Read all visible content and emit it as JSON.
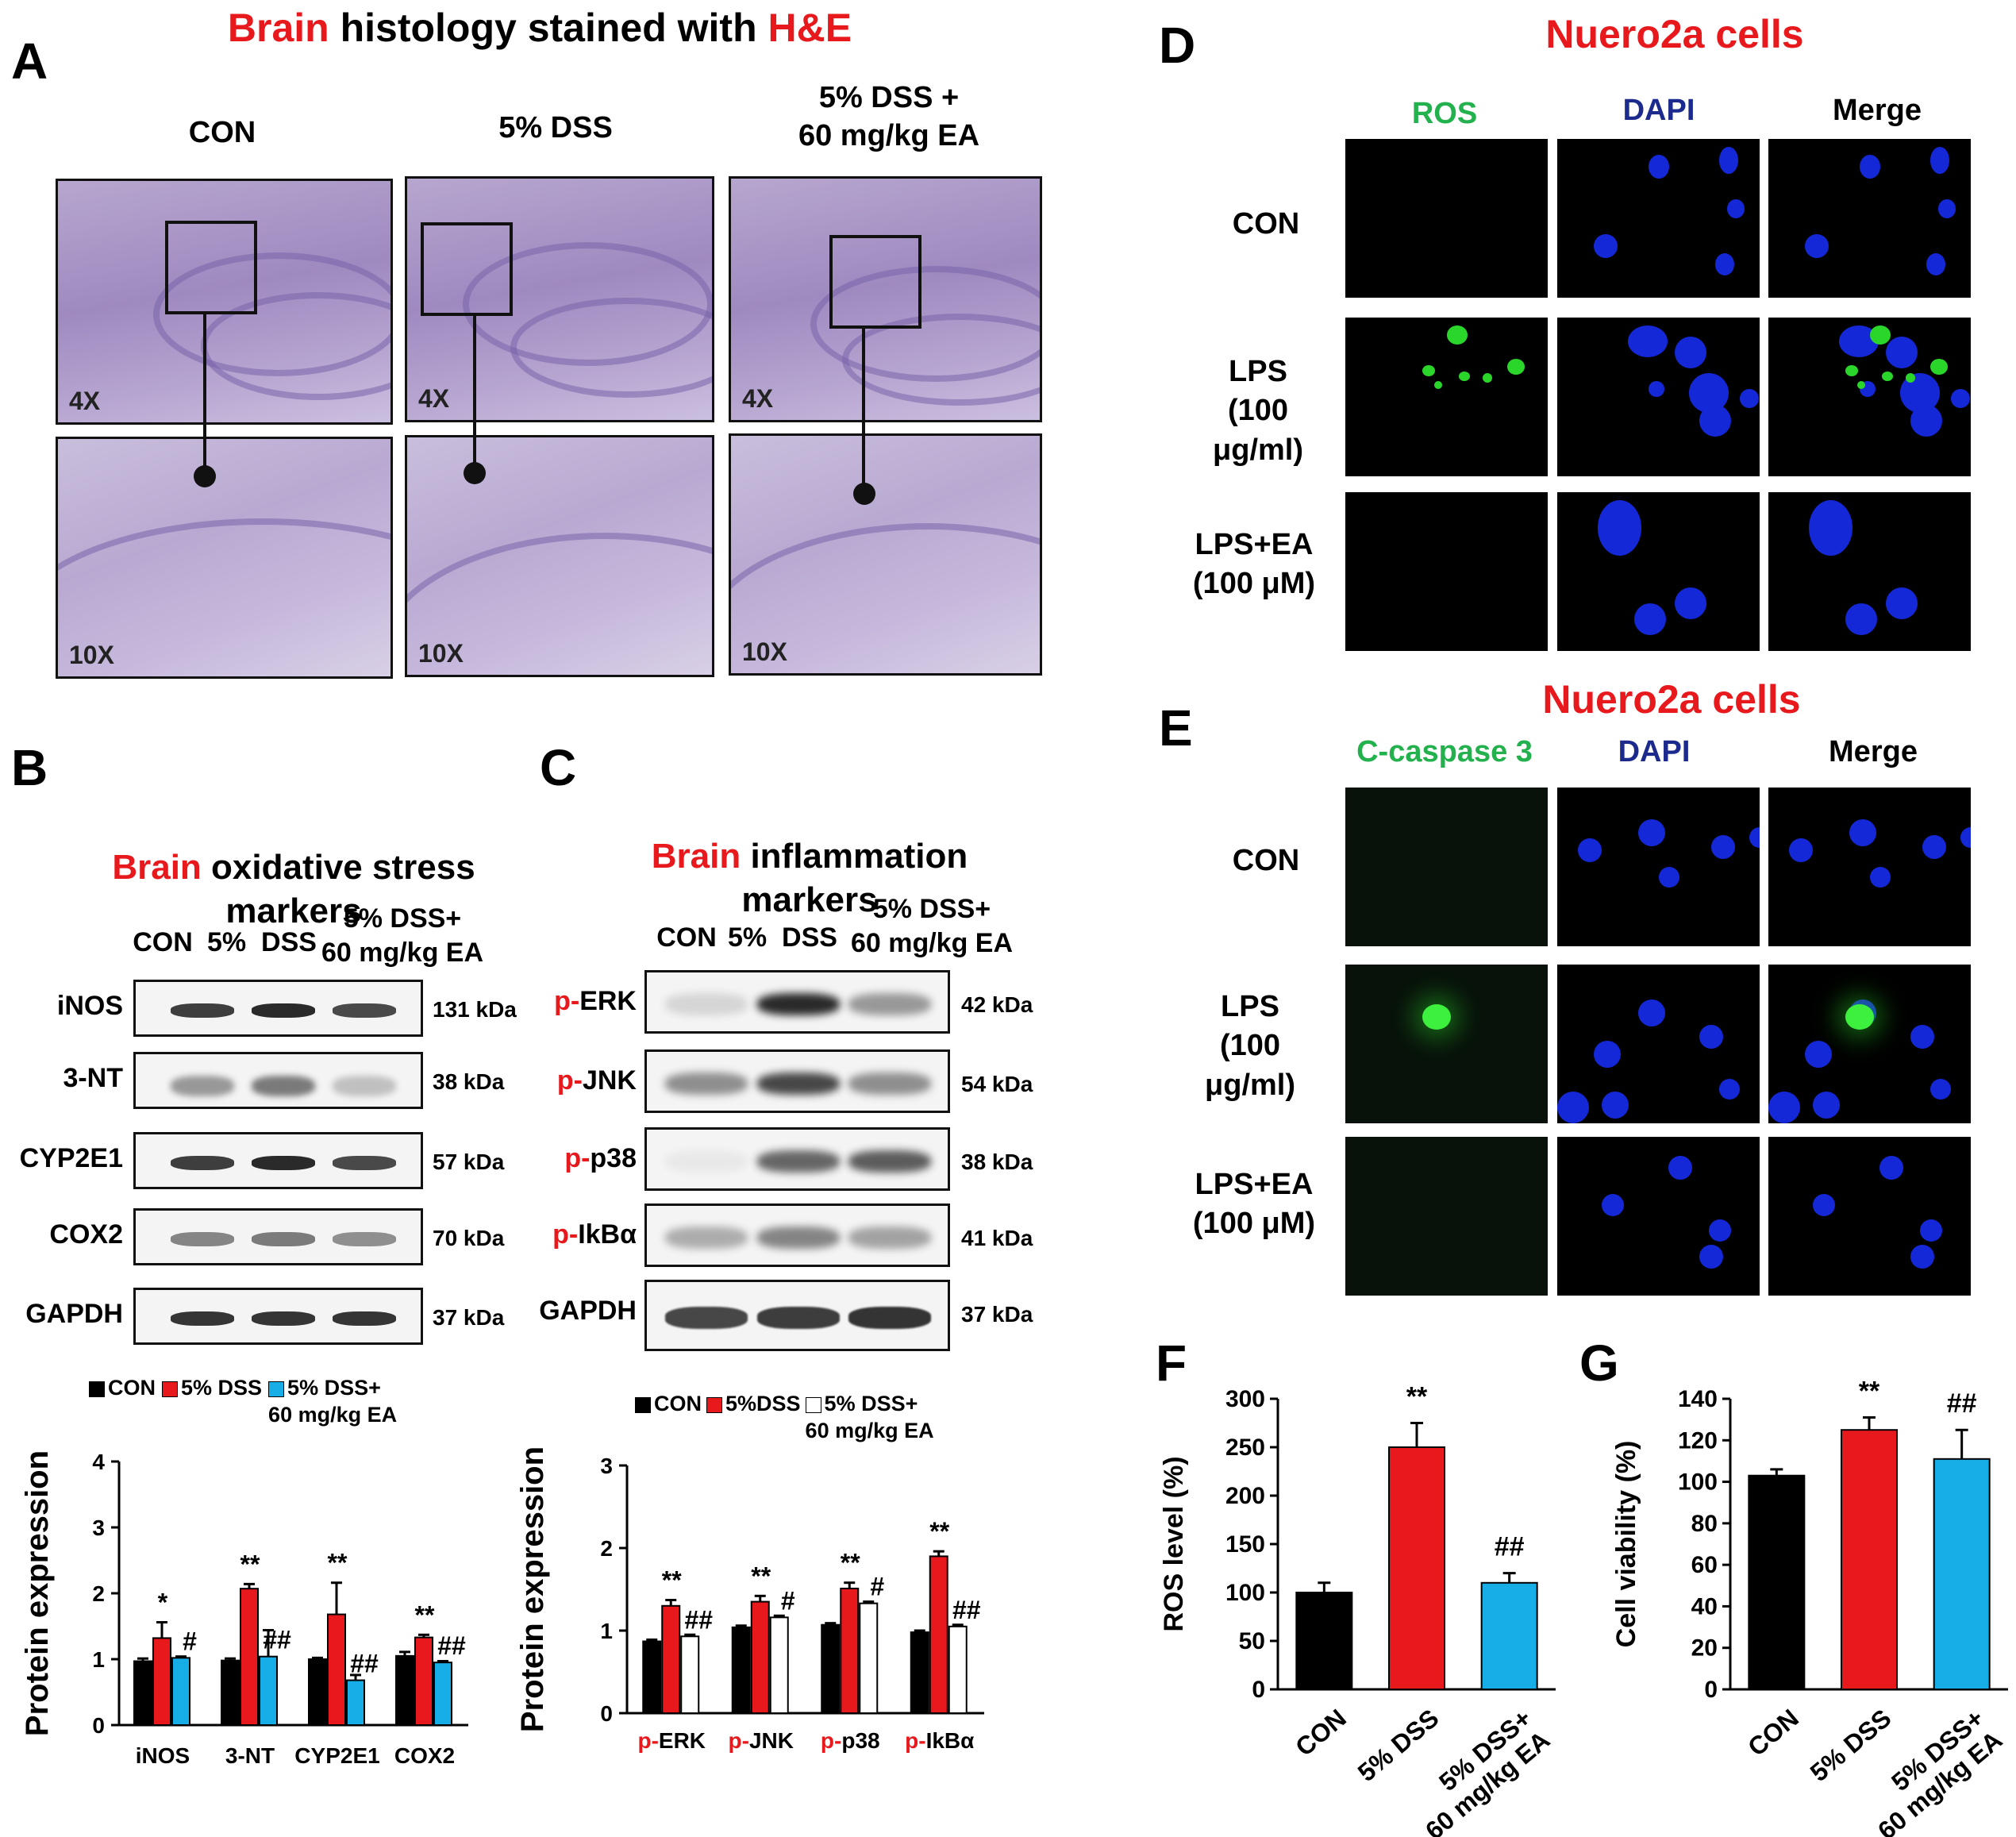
{
  "panelA": {
    "letter": "A",
    "title_part1": "Brain",
    "title_part2": " histology stained with ",
    "title_part3": "H&E",
    "groups": [
      "CON",
      "5% DSS",
      "5% DSS +\n60 mg/kg EA"
    ],
    "mag_top": "4X",
    "mag_bottom": "10X"
  },
  "panelB": {
    "letter": "B",
    "title_red": "Brain",
    "title_rest": " oxidative stress\nmarkers",
    "col_con": "CON",
    "col_dss": "5%  DSS",
    "col_ea": "5%  DSS+\n60 mg/kg EA",
    "rows": [
      {
        "label": "iNOS",
        "kda": "131 kDa"
      },
      {
        "label": "3-NT",
        "kda": "38 kDa"
      },
      {
        "label": "CYP2E1",
        "kda": "57 kDa"
      },
      {
        "label": "COX2",
        "kda": "70 kDa"
      },
      {
        "label": "GAPDH",
        "kda": "37 kDa"
      }
    ],
    "legend": [
      "CON",
      "5% DSS",
      "5% DSS+\n60 mg/kg EA"
    ]
  },
  "panelC": {
    "letter": "C",
    "title_red": "Brain",
    "title_rest": "  inflammation\nmarkers",
    "col_con": "CON",
    "col_dss": "5%  DSS",
    "col_ea": "5%  DSS+\n60 mg/kg EA",
    "rows": [
      {
        "prefix": "p-",
        "label": "ERK",
        "kda": "42 kDa"
      },
      {
        "prefix": "p-",
        "label": "JNK",
        "kda": "54 kDa"
      },
      {
        "prefix": "p-",
        "label": "p38",
        "kda": "38 kDa"
      },
      {
        "prefix": "p-",
        "label": "IkBα",
        "kda": "41 kDa"
      },
      {
        "prefix": "",
        "label": "GAPDH",
        "kda": "37 kDa"
      }
    ],
    "legend": [
      "CON",
      "5%DSS",
      "5% DSS+\n60 mg/kg EA"
    ]
  },
  "panelD": {
    "letter": "D",
    "title": "Nuero2a cells",
    "cols": [
      "ROS",
      "DAPI",
      "Merge"
    ],
    "rows": [
      "CON",
      "LPS\n(100\nμg/ml)",
      "LPS+EA\n(100 μM)"
    ]
  },
  "panelE": {
    "letter": "E",
    "title": "Nuero2a cells",
    "cols": [
      "C-caspase 3",
      "DAPI",
      "Merge"
    ],
    "rows": [
      "CON",
      "LPS\n(100\nμg/ml)",
      "LPS+EA\n(100 μM)"
    ]
  },
  "panelF": {
    "letter": "F"
  },
  "panelG": {
    "letter": "G"
  },
  "colors": {
    "con": "#000000",
    "dss": "#e8191d",
    "ea": "#17aee8",
    "title_red": "#e8191d",
    "ros_green": "#22b14c",
    "dapi_navy": "#1b2a8c"
  },
  "chart_data": [
    {
      "id": "B",
      "type": "bar",
      "categories": [
        "iNOS",
        "3-NT",
        "CYP2E1",
        "COX2"
      ],
      "series": [
        {
          "name": "CON",
          "values": [
            0.97,
            0.98,
            1.0,
            1.05
          ],
          "errors": [
            0.04,
            0.03,
            0.02,
            0.06
          ]
        },
        {
          "name": "5% DSS",
          "values": [
            1.32,
            2.07,
            1.68,
            1.33
          ],
          "errors": [
            0.24,
            0.07,
            0.48,
            0.04
          ]
        },
        {
          "name": "5% DSS+ 60 mg/kg EA",
          "values": [
            1.02,
            1.04,
            0.68,
            0.95
          ],
          "errors": [
            0.02,
            0.4,
            0.08,
            0.02
          ]
        }
      ],
      "annotations": [
        {
          "category": "iNOS",
          "series": 1,
          "text": "*"
        },
        {
          "category": "iNOS",
          "series": 2,
          "text": "#"
        },
        {
          "category": "3-NT",
          "series": 1,
          "text": "**"
        },
        {
          "category": "3-NT",
          "series": 2,
          "text": "##"
        },
        {
          "category": "CYP2E1",
          "series": 1,
          "text": "**"
        },
        {
          "category": "CYP2E1",
          "series": 2,
          "text": "##"
        },
        {
          "category": "COX2",
          "series": 1,
          "text": "**"
        },
        {
          "category": "COX2",
          "series": 2,
          "text": "##"
        }
      ],
      "ylabel": "Protein expression",
      "ylim": [
        0,
        4
      ],
      "yticks": [
        "0",
        "1",
        "2",
        "3",
        "4"
      ]
    },
    {
      "id": "C",
      "type": "bar",
      "categories": [
        "p-ERK",
        "p-JNK",
        "p-p38",
        "p-IkBα"
      ],
      "category_prefix": "p-",
      "category_names": [
        "ERK",
        "JNK",
        "p38",
        "IkBα"
      ],
      "series": [
        {
          "name": "CON",
          "values": [
            0.87,
            1.04,
            1.07,
            0.98
          ],
          "errors": [
            0.02,
            0.02,
            0.02,
            0.02
          ]
        },
        {
          "name": "5%DSS",
          "values": [
            1.3,
            1.35,
            1.51,
            1.9
          ],
          "errors": [
            0.07,
            0.07,
            0.07,
            0.06
          ]
        },
        {
          "name": "5% DSS+ 60 mg/kg EA",
          "values": [
            0.93,
            1.16,
            1.33,
            1.05
          ],
          "errors": [
            0.02,
            0.02,
            0.02,
            0.02
          ]
        }
      ],
      "annotations": [
        {
          "category": "p-ERK",
          "series": 1,
          "text": "**"
        },
        {
          "category": "p-ERK",
          "series": 2,
          "text": "##"
        },
        {
          "category": "p-JNK",
          "series": 1,
          "text": "**"
        },
        {
          "category": "p-JNK",
          "series": 2,
          "text": "#"
        },
        {
          "category": "p-p38",
          "series": 1,
          "text": "**"
        },
        {
          "category": "p-p38",
          "series": 2,
          "text": "#"
        },
        {
          "category": "p-IkBα",
          "series": 1,
          "text": "**"
        },
        {
          "category": "p-IkBα",
          "series": 2,
          "text": "##"
        }
      ],
      "ylabel": "Protein expression",
      "ylim": [
        0,
        3
      ],
      "yticks": [
        "0",
        "1",
        "2",
        "3"
      ]
    },
    {
      "id": "F",
      "type": "bar",
      "categories": [
        "CON",
        "5% DSS",
        "5% DSS+\n60 mg/kg EA"
      ],
      "values": [
        100,
        250,
        110
      ],
      "errors": [
        10,
        25,
        10
      ],
      "annotations": [
        "",
        "**",
        "##"
      ],
      "ylabel": "ROS level (%)",
      "ylim": [
        0,
        300
      ],
      "yticks": [
        "0",
        "50",
        "100",
        "150",
        "200",
        "250",
        "300"
      ]
    },
    {
      "id": "G",
      "type": "bar",
      "categories": [
        "CON",
        "5% DSS",
        "5% DSS+\n60 mg/kg EA"
      ],
      "values": [
        103,
        125,
        111
      ],
      "errors": [
        3,
        6,
        14
      ],
      "annotations": [
        "",
        "**",
        "##"
      ],
      "ylabel": "Cell viability (%)",
      "ylim": [
        0,
        140
      ],
      "yticks": [
        "0",
        "20",
        "40",
        "60",
        "80",
        "100",
        "120",
        "140"
      ]
    }
  ]
}
